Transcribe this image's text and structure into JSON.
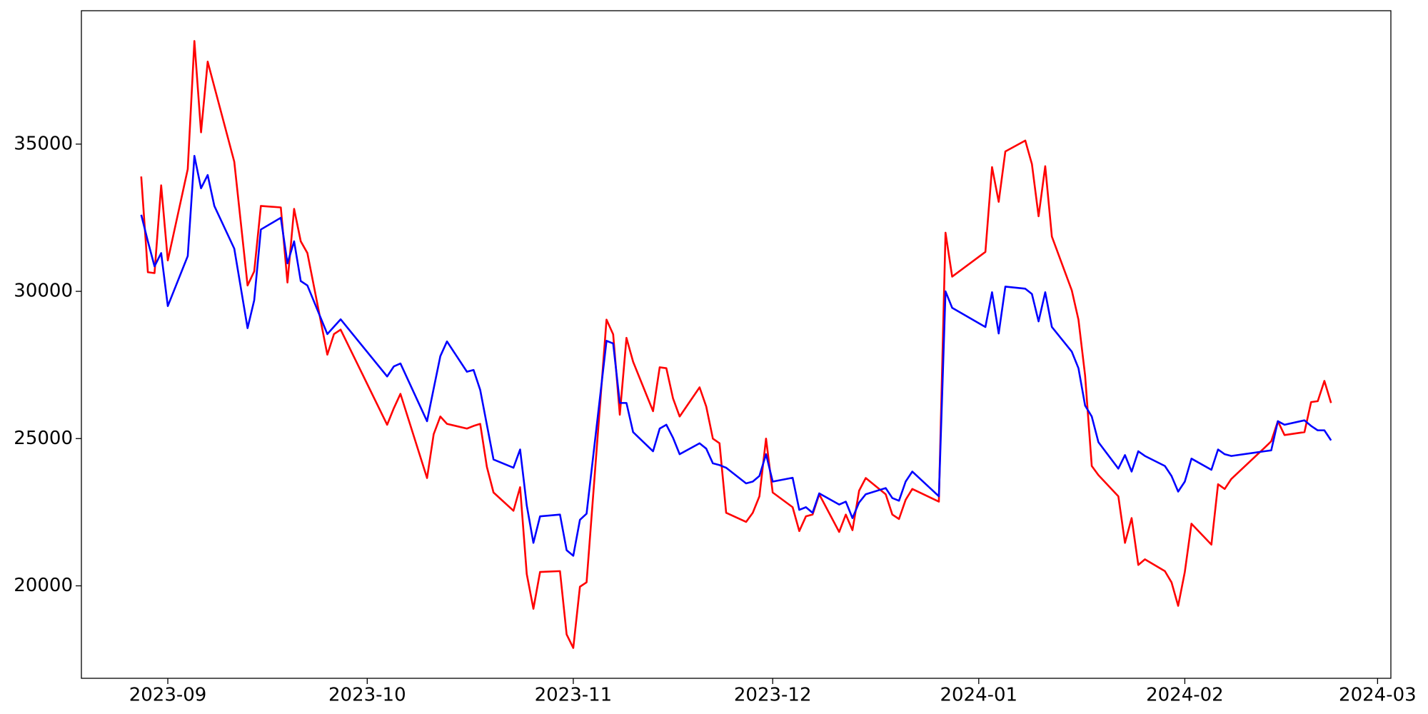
{
  "chart_data": {
    "type": "line",
    "x": [
      "2023-08-28",
      "2023-08-29",
      "2023-08-30",
      "2023-08-31",
      "2023-09-01",
      "2023-09-04",
      "2023-09-05",
      "2023-09-06",
      "2023-09-07",
      "2023-09-08",
      "2023-09-11",
      "2023-09-12",
      "2023-09-13",
      "2023-09-14",
      "2023-09-15",
      "2023-09-18",
      "2023-09-19",
      "2023-09-20",
      "2023-09-21",
      "2023-09-22",
      "2023-09-25",
      "2023-09-26",
      "2023-09-27",
      "2023-10-04",
      "2023-10-05",
      "2023-10-06",
      "2023-10-10",
      "2023-10-11",
      "2023-10-12",
      "2023-10-13",
      "2023-10-16",
      "2023-10-17",
      "2023-10-18",
      "2023-10-19",
      "2023-10-20",
      "2023-10-23",
      "2023-10-24",
      "2023-10-25",
      "2023-10-26",
      "2023-10-27",
      "2023-10-30",
      "2023-10-31",
      "2023-11-01",
      "2023-11-02",
      "2023-11-03",
      "2023-11-06",
      "2023-11-07",
      "2023-11-08",
      "2023-11-09",
      "2023-11-10",
      "2023-11-13",
      "2023-11-14",
      "2023-11-15",
      "2023-11-16",
      "2023-11-17",
      "2023-11-20",
      "2023-11-21",
      "2023-11-22",
      "2023-11-23",
      "2023-11-24",
      "2023-11-27",
      "2023-11-28",
      "2023-11-29",
      "2023-11-30",
      "2023-12-01",
      "2023-12-04",
      "2023-12-05",
      "2023-12-06",
      "2023-12-07",
      "2023-12-08",
      "2023-12-11",
      "2023-12-12",
      "2023-12-13",
      "2023-12-14",
      "2023-12-15",
      "2023-12-18",
      "2023-12-19",
      "2023-12-20",
      "2023-12-21",
      "2023-12-22",
      "2023-12-26",
      "2023-12-27",
      "2023-12-28",
      "2024-01-02",
      "2024-01-03",
      "2024-01-04",
      "2024-01-05",
      "2024-01-08",
      "2024-01-09",
      "2024-01-10",
      "2024-01-11",
      "2024-01-12",
      "2024-01-15",
      "2024-01-16",
      "2024-01-17",
      "2024-01-18",
      "2024-01-19",
      "2024-01-22",
      "2024-01-23",
      "2024-01-24",
      "2024-01-25",
      "2024-01-26",
      "2024-01-29",
      "2024-01-30",
      "2024-01-31",
      "2024-02-01",
      "2024-02-02",
      "2024-02-05",
      "2024-02-06",
      "2024-02-07",
      "2024-02-08",
      "2024-02-13",
      "2024-02-14",
      "2024-02-15",
      "2024-02-16",
      "2024-02-19",
      "2024-02-20",
      "2024-02-21",
      "2024-02-22",
      "2024-02-23"
    ],
    "series": [
      {
        "color": "#ff0000",
        "values": [
          33900,
          30650,
          30620,
          33600,
          31050,
          34150,
          38500,
          35400,
          37800,
          36950,
          34400,
          32300,
          30200,
          30680,
          32900,
          32850,
          30300,
          32800,
          31700,
          31300,
          27850,
          28550,
          28700,
          25470,
          26030,
          26520,
          23660,
          25150,
          25750,
          25500,
          25340,
          25430,
          25500,
          24040,
          23170,
          22550,
          23350,
          20400,
          19220,
          20470,
          20500,
          18350,
          17890,
          19970,
          20120,
          29040,
          28540,
          25810,
          28420,
          27610,
          25930,
          27420,
          27390,
          26370,
          25750,
          26740,
          26090,
          25000,
          24840,
          22480,
          22170,
          22480,
          23040,
          25000,
          23170,
          22670,
          21860,
          22360,
          22420,
          23110,
          21830,
          22420,
          21890,
          23230,
          23660,
          23110,
          22420,
          22270,
          22920,
          23290,
          22860,
          31990,
          30500,
          31340,
          34220,
          33040,
          34750,
          35120,
          34320,
          32550,
          34250,
          31860,
          30030,
          29040,
          27140,
          24070,
          23760,
          23040,
          21460,
          22300,
          20710,
          20900,
          20500,
          20120,
          19320,
          20470,
          22110,
          21400,
          23450,
          23290,
          23630,
          24690,
          24910,
          25590,
          25120,
          25220,
          26240,
          26270,
          26960,
          26210
        ]
      },
      {
        "color": "#0000ff",
        "values": [
          32600,
          31700,
          30850,
          31300,
          29500,
          31200,
          34600,
          33500,
          33950,
          32900,
          31450,
          30100,
          28750,
          29700,
          32100,
          32500,
          30950,
          31700,
          30350,
          30200,
          28550,
          28800,
          29050,
          27110,
          27450,
          27550,
          25590,
          26700,
          27800,
          28300,
          27270,
          27330,
          26650,
          25470,
          24290,
          24010,
          24630,
          22730,
          21460,
          22360,
          22420,
          21210,
          21020,
          22240,
          22450,
          28320,
          28230,
          26210,
          26210,
          25220,
          24570,
          25340,
          25470,
          25030,
          24470,
          24840,
          24660,
          24160,
          24100,
          24010,
          23480,
          23540,
          23730,
          24470,
          23540,
          23670,
          22580,
          22670,
          22480,
          23140,
          22760,
          22860,
          22300,
          22830,
          23110,
          23320,
          22980,
          22890,
          23540,
          23880,
          23040,
          30000,
          29440,
          28790,
          29970,
          28570,
          30160,
          30090,
          29910,
          28980,
          29970,
          28790,
          27950,
          27390,
          26120,
          25750,
          24880,
          23980,
          24440,
          23880,
          24570,
          24410,
          24070,
          23730,
          23200,
          23540,
          24320,
          23940,
          24630,
          24470,
          24410,
          24570,
          24600,
          25590,
          25470,
          25620,
          25430,
          25280,
          25280,
          24940
        ]
      }
    ],
    "xlim": [
      "2023-08-19",
      "2024-03-03"
    ],
    "xticks": [
      "2023-09",
      "2023-10",
      "2023-11",
      "2023-12",
      "2024-01",
      "2024-02",
      "2024-03"
    ],
    "ylim": [
      16860,
      39530
    ],
    "yticks": [
      20000,
      25000,
      30000,
      35000
    ],
    "grid": false
  }
}
